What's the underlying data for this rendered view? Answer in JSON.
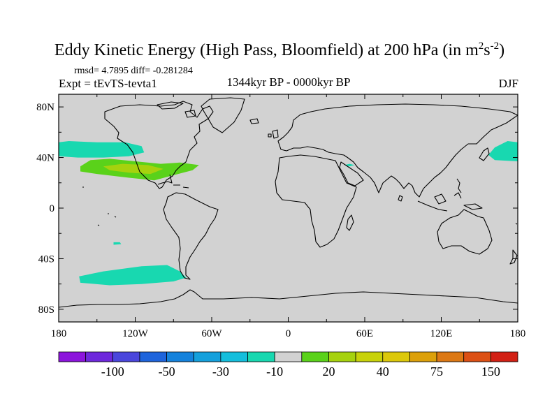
{
  "title": {
    "prefix": "Eddy Kinetic Energy (High Pass, Bloomfield) at 200 hPa (in m",
    "sup1": "2",
    "mid": "s",
    "sup2": "-2",
    "suffix": ")"
  },
  "stats_line": "rmsd= 4.7895 diff= -0.281284",
  "experiment": "Expt = tEvTS-tevta1",
  "period": "1344kyr BP - 0000kyr BP",
  "season": "DJF",
  "map": {
    "projection": "cylindrical-equidistant",
    "lon_range": [
      -180,
      180
    ],
    "lat_range": [
      -90,
      90
    ],
    "background_color": "#d2d2d2",
    "coastline_color": "#000000",
    "lat_ticks": [
      {
        "lat": 80,
        "label": "80N"
      },
      {
        "lat": 40,
        "label": "40N"
      },
      {
        "lat": 0,
        "label": "0"
      },
      {
        "lat": -40,
        "label": "40S"
      },
      {
        "lat": -80,
        "label": "80S"
      }
    ],
    "lon_ticks": [
      {
        "lon": -180,
        "label": "180"
      },
      {
        "lon": -120,
        "label": "120W"
      },
      {
        "lon": -60,
        "label": "60W"
      },
      {
        "lon": 0,
        "label": "0"
      },
      {
        "lon": 60,
        "label": "60E"
      },
      {
        "lon": 120,
        "label": "120E"
      },
      {
        "lon": 180,
        "label": "180"
      }
    ],
    "anomaly_regions": [
      {
        "name": "north-pacific-negative",
        "class": "-20 to -10",
        "color": "#18d8b0",
        "points": [
          [
            -180,
            52
          ],
          [
            -172,
            53
          ],
          [
            -150,
            52
          ],
          [
            -128,
            52
          ],
          [
            -115,
            49
          ],
          [
            -113,
            44
          ],
          [
            -125,
            41
          ],
          [
            -145,
            40
          ],
          [
            -165,
            40
          ],
          [
            -180,
            41
          ]
        ]
      },
      {
        "name": "east-pacific-positive",
        "class": "10 to 20",
        "color": "#5ad21a",
        "points": [
          [
            -163,
            33
          ],
          [
            -155,
            38
          ],
          [
            -140,
            39
          ],
          [
            -120,
            37
          ],
          [
            -100,
            35
          ],
          [
            -85,
            36
          ],
          [
            -70,
            34
          ],
          [
            -75,
            30
          ],
          [
            -90,
            26
          ],
          [
            -105,
            22
          ],
          [
            -125,
            24
          ],
          [
            -150,
            27
          ],
          [
            -163,
            29
          ]
        ]
      },
      {
        "name": "east-pacific-core",
        "class": "20 to 30",
        "color": "#a6d20e",
        "points": [
          [
            -145,
            33
          ],
          [
            -130,
            35
          ],
          [
            -110,
            34
          ],
          [
            -98,
            31
          ],
          [
            -108,
            27
          ],
          [
            -125,
            28
          ],
          [
            -140,
            30
          ]
        ]
      },
      {
        "name": "west-pacific-negative",
        "class": "-20 to -10",
        "color": "#18d8b0",
        "points": [
          [
            180,
            52
          ],
          [
            172,
            53
          ],
          [
            162,
            48
          ],
          [
            157,
            42
          ],
          [
            162,
            38
          ],
          [
            180,
            37
          ]
        ]
      },
      {
        "name": "arabian-sea-negative",
        "class": "-20 to -10",
        "color": "#18d8b0",
        "points": [
          [
            44,
            34
          ],
          [
            48,
            35
          ],
          [
            52,
            34
          ],
          [
            48,
            33
          ]
        ]
      },
      {
        "name": "south-pacific-patch",
        "class": "-20 to -10",
        "color": "#18d8b0",
        "points": [
          [
            -137,
            -27
          ],
          [
            -132,
            -27
          ],
          [
            -131,
            -28.5
          ],
          [
            -137,
            -29
          ]
        ]
      },
      {
        "name": "southern-ocean-negative",
        "class": "-20 to -10",
        "color": "#18d8b0",
        "points": [
          [
            -164,
            -54
          ],
          [
            -145,
            -50
          ],
          [
            -115,
            -46
          ],
          [
            -95,
            -45
          ],
          [
            -85,
            -50
          ],
          [
            -80,
            -55
          ],
          [
            -90,
            -58
          ],
          [
            -115,
            -60
          ],
          [
            -140,
            -61
          ],
          [
            -163,
            -59
          ]
        ]
      }
    ]
  },
  "colorbar": {
    "colors": [
      "#8c14dc",
      "#6e28dc",
      "#4a46dc",
      "#1e64dc",
      "#1482dc",
      "#14a0dc",
      "#14bedc",
      "#18d8b0",
      "#d2d2d2",
      "#5ad21a",
      "#a6d20e",
      "#c8d20a",
      "#dcc80a",
      "#dca00a",
      "#dc7814",
      "#dc5014",
      "#d22014"
    ],
    "labels": [
      "-100",
      "-50",
      "-30",
      "-10",
      "20",
      "40",
      "75",
      "150"
    ]
  }
}
